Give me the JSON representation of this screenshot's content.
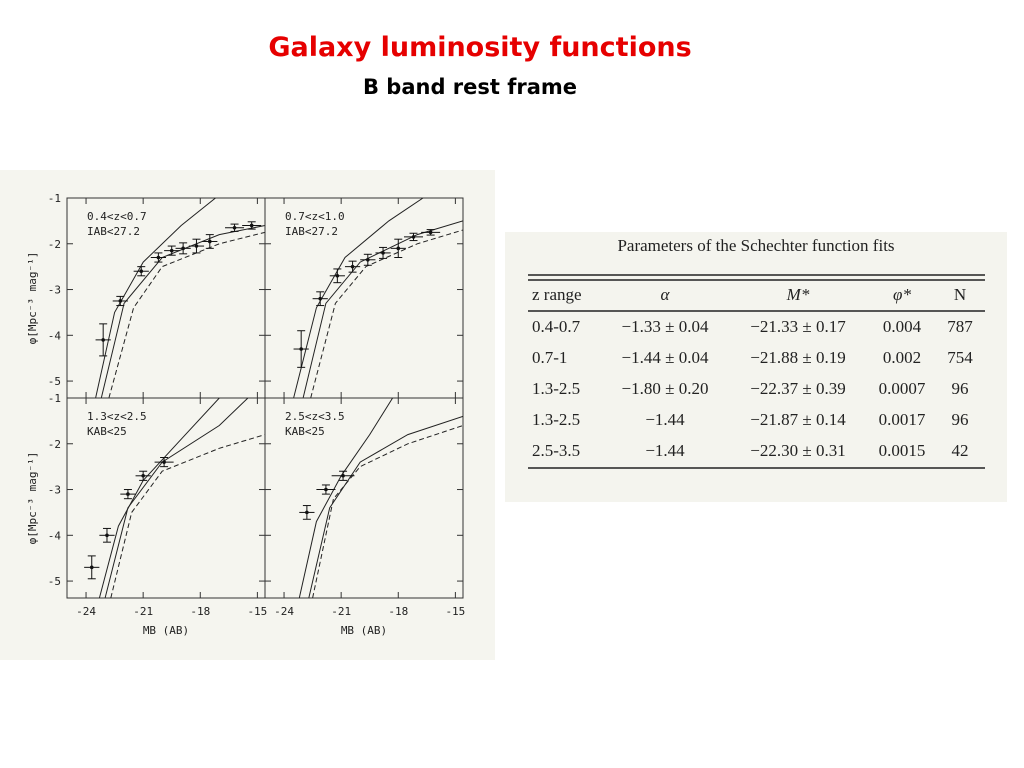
{
  "title": "Galaxy luminosity functions",
  "subtitle": "B band rest frame",
  "figure": {
    "y_label": "φ[Mpc⁻³ mag⁻¹]",
    "x_label": "MB (AB)",
    "xlim": [
      -25,
      -14.6
    ],
    "ylim": [
      -5.37,
      -1
    ],
    "xticks": [
      -24,
      -21,
      -18,
      -15
    ],
    "yticks": [
      -1,
      -2,
      -3,
      -4,
      -5
    ],
    "panels": [
      {
        "label": "0.4<z<0.7",
        "limit": "IAB<27.2",
        "x": [
          -23.1,
          -22.2,
          -21.1,
          -20.2,
          -19.5,
          -18.9,
          -18.2,
          -17.5,
          -16.2,
          -15.3
        ],
        "y": [
          -4.1,
          -3.25,
          -2.6,
          -2.3,
          -2.15,
          -2.1,
          -2.05,
          -1.95,
          -1.65,
          -1.6
        ],
        "xerr": [
          0.4,
          0.4,
          0.4,
          0.4,
          0.4,
          0.4,
          0.4,
          0.4,
          0.5,
          0.5
        ],
        "yerr": [
          0.35,
          0.1,
          0.1,
          0.1,
          0.1,
          0.12,
          0.15,
          0.15,
          0.08,
          0.08
        ],
        "curves": [
          {
            "style": "solid",
            "x": [
              -23.5,
              -22.5,
              -21,
              -19,
              -17.2
            ],
            "y": [
              -5.37,
              -3.5,
              -2.4,
              -1.6,
              -1
            ]
          },
          {
            "style": "solid",
            "x": [
              -23.2,
              -22,
              -20,
              -17,
              -14.6
            ],
            "y": [
              -5.37,
              -3.3,
              -2.3,
              -1.8,
              -1.6
            ]
          },
          {
            "style": "dashed",
            "x": [
              -22.8,
              -21.5,
              -20,
              -17,
              -14.6
            ],
            "y": [
              -5.37,
              -3.4,
              -2.5,
              -2,
              -1.75
            ]
          }
        ]
      },
      {
        "label": "0.7<z<1.0",
        "limit": "IAB<27.2",
        "x": [
          -23.1,
          -22.1,
          -21.2,
          -20.4,
          -19.6,
          -18.8,
          -18.0,
          -17.2,
          -16.3
        ],
        "y": [
          -4.3,
          -3.2,
          -2.7,
          -2.5,
          -2.35,
          -2.2,
          -2.1,
          -1.85,
          -1.75
        ],
        "xerr": [
          0.4,
          0.4,
          0.4,
          0.4,
          0.4,
          0.4,
          0.4,
          0.5,
          0.5
        ],
        "yerr": [
          0.4,
          0.15,
          0.15,
          0.12,
          0.12,
          0.12,
          0.2,
          0.08,
          0.06
        ],
        "curves": [
          {
            "style": "solid",
            "x": [
              -23.5,
              -22.3,
              -20.8,
              -18.5,
              -16.7
            ],
            "y": [
              -5.37,
              -3.4,
              -2.3,
              -1.5,
              -1
            ]
          },
          {
            "style": "solid",
            "x": [
              -23,
              -21.8,
              -20,
              -17,
              -14.6
            ],
            "y": [
              -5.37,
              -3.3,
              -2.4,
              -1.8,
              -1.5
            ]
          },
          {
            "style": "dashed",
            "x": [
              -22.6,
              -21.3,
              -19.7,
              -17,
              -14.6
            ],
            "y": [
              -5.37,
              -3.3,
              -2.5,
              -2,
              -1.7
            ]
          }
        ]
      },
      {
        "label": "1.3<z<2.5",
        "limit": "KAB<25",
        "x": [
          -23.7,
          -22.9,
          -21.8,
          -21.0,
          -19.9
        ],
        "y": [
          -4.7,
          -4.0,
          -3.1,
          -2.7,
          -2.4
        ],
        "xerr": [
          0.4,
          0.4,
          0.4,
          0.4,
          0.5
        ],
        "yerr": [
          0.25,
          0.15,
          0.1,
          0.1,
          0.1
        ],
        "curves": [
          {
            "style": "solid",
            "x": [
              -23.3,
              -22.3,
              -21,
              -19,
              -17
            ],
            "y": [
              -5.37,
              -3.8,
              -2.8,
              -1.9,
              -1
            ]
          },
          {
            "style": "solid",
            "x": [
              -23,
              -21.8,
              -20,
              -17,
              -15.5
            ],
            "y": [
              -5.37,
              -3.4,
              -2.4,
              -1.6,
              -1
            ]
          },
          {
            "style": "dashed",
            "x": [
              -22.7,
              -21.6,
              -20,
              -17,
              -14.6
            ],
            "y": [
              -5.37,
              -3.5,
              -2.6,
              -2.1,
              -1.8
            ]
          }
        ]
      },
      {
        "label": "2.5<z<3.5",
        "limit": "KAB<25",
        "x": [
          -22.8,
          -21.8,
          -20.9
        ],
        "y": [
          -3.5,
          -3.0,
          -2.7
        ],
        "xerr": [
          0.4,
          0.5,
          0.6
        ],
        "yerr": [
          0.15,
          0.1,
          0.1
        ],
        "curves": [
          {
            "style": "solid",
            "x": [
              -23.2,
              -22.3,
              -21,
              -19.5,
              -18.3
            ],
            "y": [
              -5.37,
              -3.7,
              -2.7,
              -1.8,
              -1
            ]
          },
          {
            "style": "solid",
            "x": [
              -22.7,
              -21.6,
              -20,
              -17.5,
              -14.6
            ],
            "y": [
              -5.37,
              -3.4,
              -2.4,
              -1.8,
              -1.4
            ]
          },
          {
            "style": "dashed",
            "x": [
              -22.5,
              -21.4,
              -20,
              -17.5,
              -14.6
            ],
            "y": [
              -5.37,
              -3.2,
              -2.5,
              -2,
              -1.6
            ]
          }
        ]
      }
    ]
  },
  "table": {
    "title": "Parameters of the Schechter function fits",
    "header": [
      "z range",
      "α",
      "M*",
      "φ*",
      "N"
    ],
    "rows": [
      [
        "0.4-0.7",
        "−1.33 ± 0.04",
        "−21.33 ± 0.17",
        "0.004",
        "787"
      ],
      [
        "0.7-1",
        "−1.44 ± 0.04",
        "−21.88 ± 0.19",
        "0.002",
        "754"
      ],
      [
        "1.3-2.5",
        "−1.80 ± 0.20",
        "−22.37 ± 0.39",
        "0.0007",
        "96"
      ],
      [
        "1.3-2.5",
        "−1.44",
        "−21.87 ± 0.14",
        "0.0017",
        "96"
      ],
      [
        "2.5-3.5",
        "−1.44",
        "−22.30 ± 0.31",
        "0.0015",
        "42"
      ]
    ]
  }
}
